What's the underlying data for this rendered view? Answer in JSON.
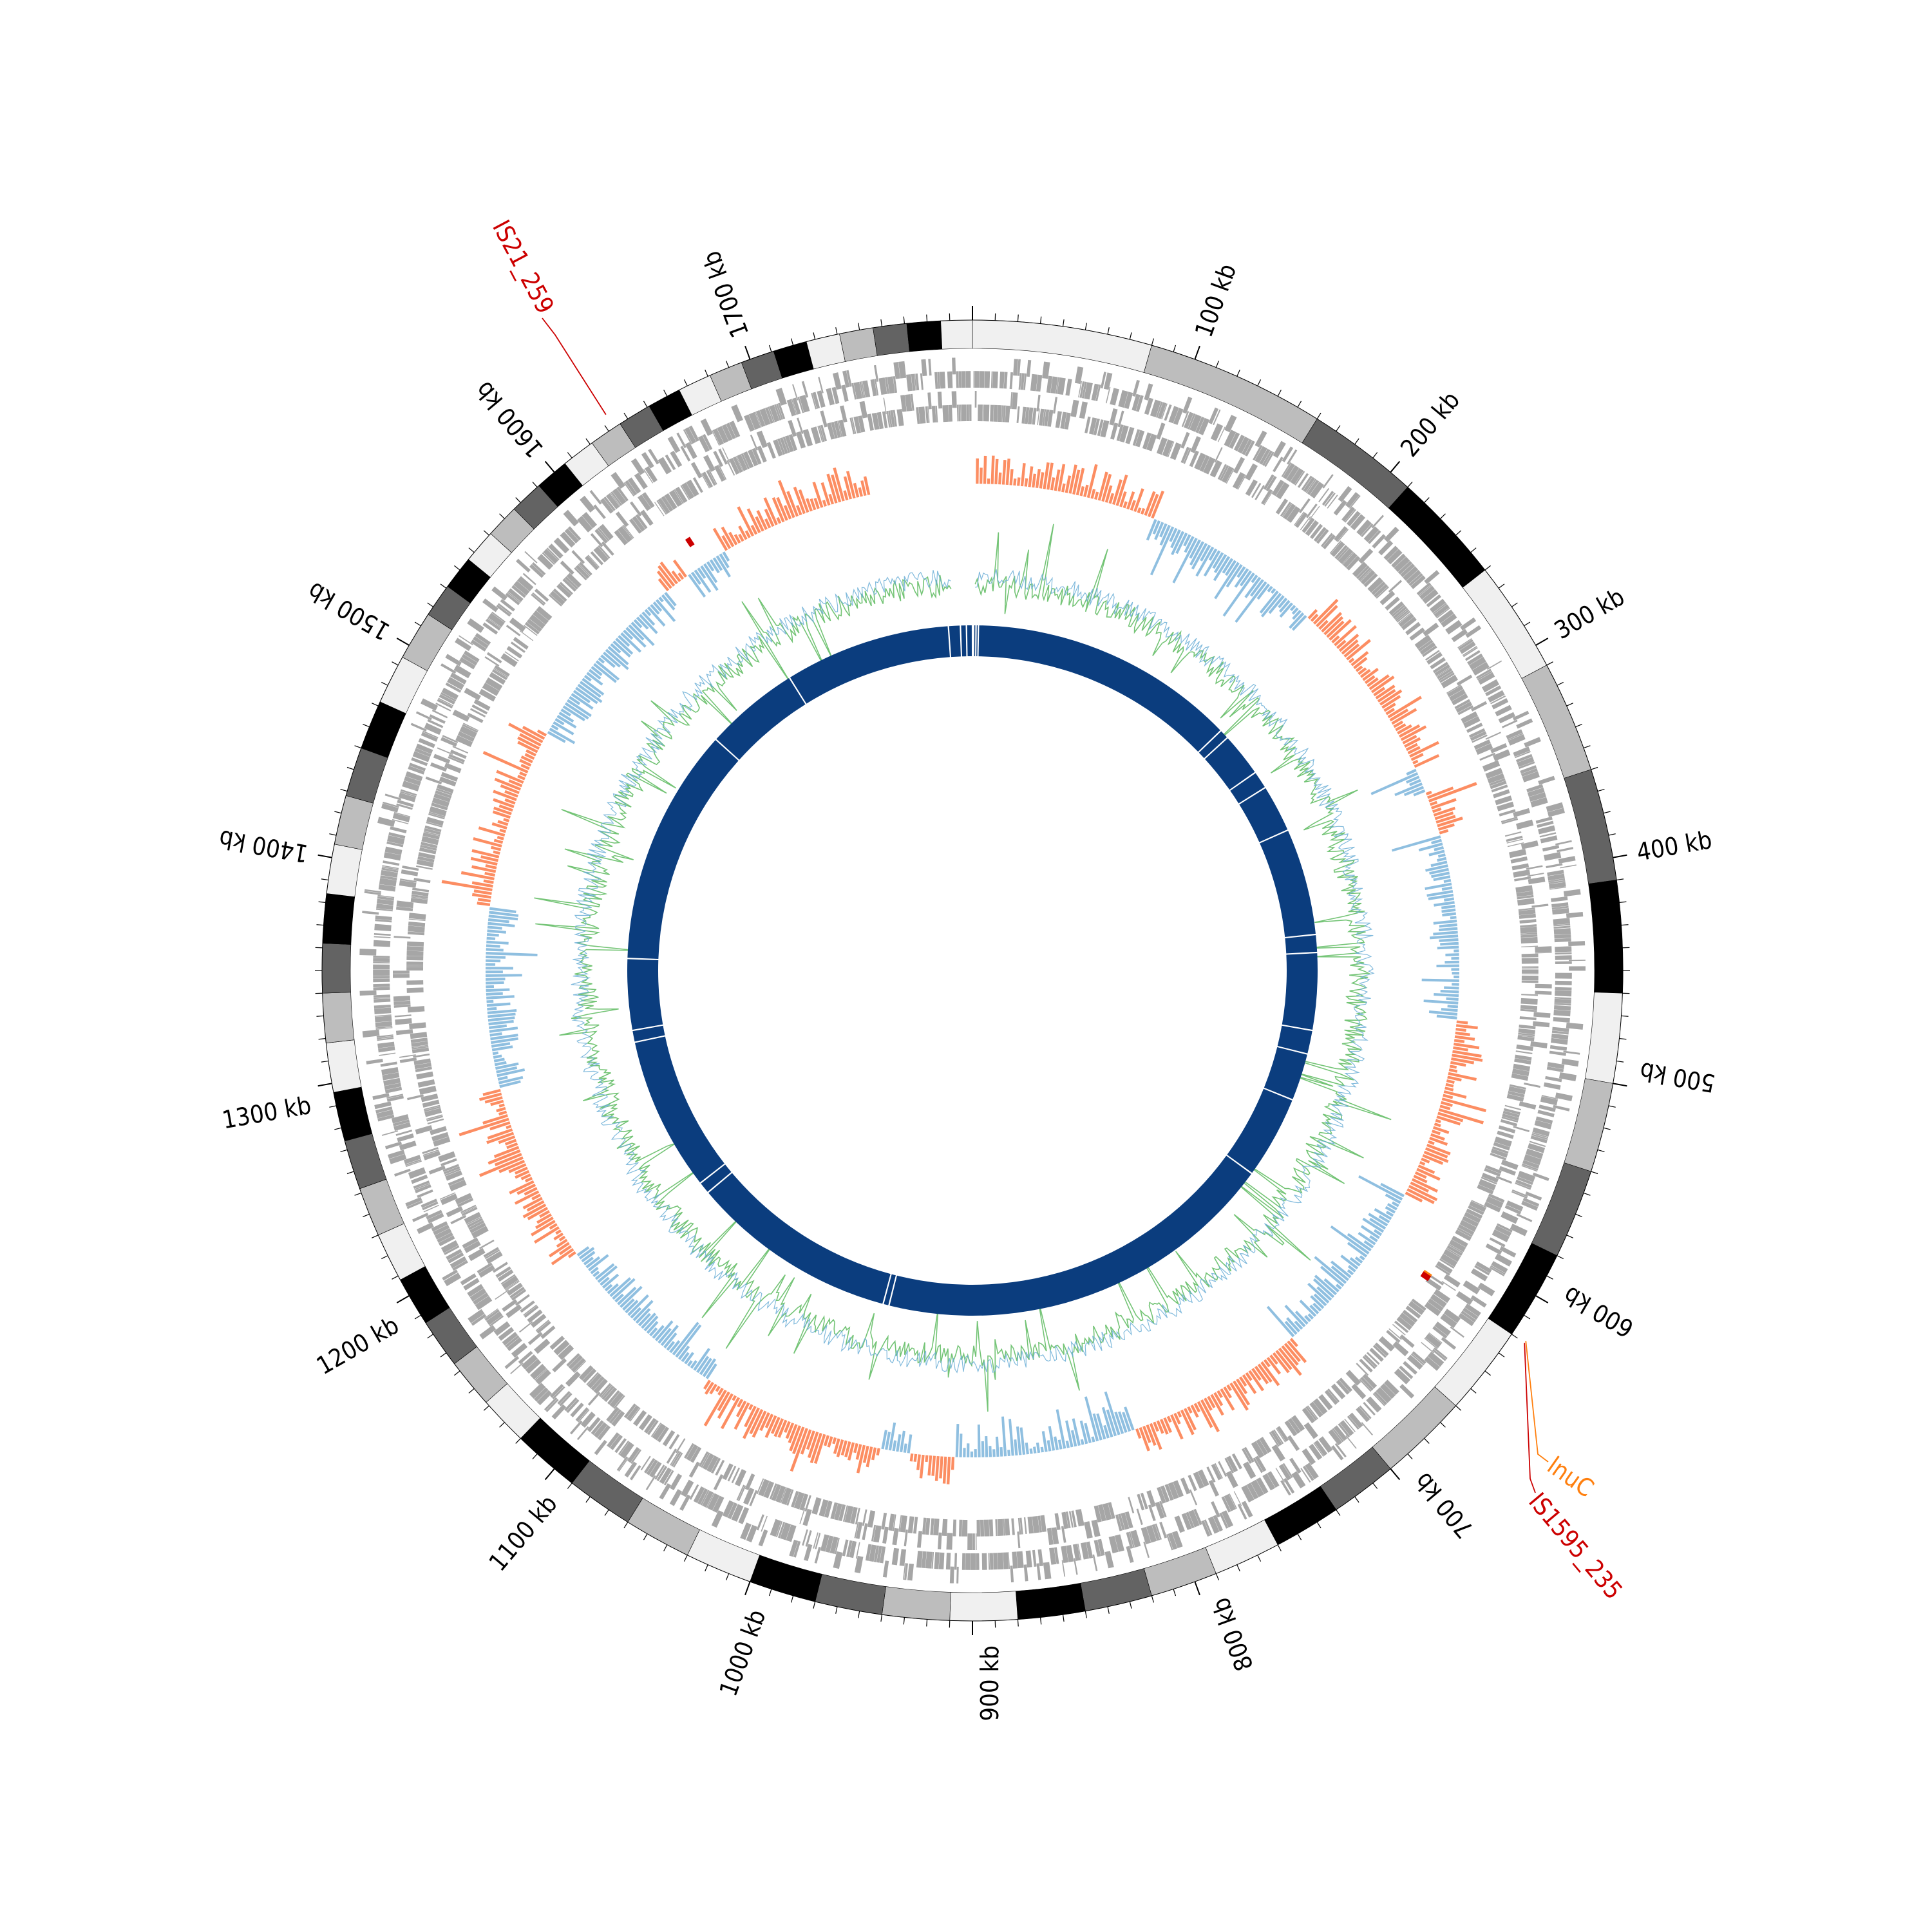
{
  "genome": {
    "length_kb": 1800,
    "start_angle_deg": 0,
    "label_every_kb": 100,
    "tick_labels": [
      "100 kb",
      "200 kb",
      "300 kb",
      "400 kb",
      "500 kb",
      "600 kb",
      "700 kb",
      "800 kb",
      "900 kb",
      "1000 kb",
      "1100 kb",
      "1200 kb",
      "1300 kb",
      "1400 kb",
      "1500 kb",
      "1600 kb",
      "1700 kb"
    ],
    "tick_positions_kb": [
      100,
      200,
      300,
      400,
      500,
      600,
      700,
      800,
      900,
      1000,
      1100,
      1200,
      1300,
      1400,
      1500,
      1600,
      1700
    ]
  },
  "ideogram": {
    "shades": [
      "#f0f0f0",
      "#bdbdbd",
      "#636363",
      "#000000"
    ],
    "band_widths_kb": [
      [
        0,
        150,
        80
      ],
      [
        150,
        420,
        50
      ],
      [
        420,
        700,
        40
      ],
      [
        700,
        1100,
        30
      ],
      [
        1100,
        1500,
        22
      ],
      [
        1500,
        1800,
        15
      ]
    ]
  },
  "tracks": {
    "genes": {
      "color": "#a6a6a6",
      "strands": 2
    },
    "skew": {
      "positive_color": "#fc8d62",
      "negative_color": "#8fbfe0",
      "gap_kb": [
        1740,
        1800
      ]
    },
    "gc": {
      "line_color": "#74c476",
      "alt_color": "#6baed6",
      "gap_kb": [
        1785,
        1800
      ]
    },
    "contigs": {
      "color": "#0b3d7e",
      "breaks_kb": [
        1,
        3,
        5,
        230,
        238,
        275,
        290,
        330,
        420,
        435,
        500,
        520,
        560,
        630,
        970,
        975,
        1150,
        1160,
        1290,
        1300,
        1360,
        1560,
        1640,
        1780,
        1790,
        1795
      ]
    }
  },
  "annotations": [
    {
      "label": "IS21_259",
      "position_kb": 1633,
      "color": "#cc0000"
    },
    {
      "label": "lnuC",
      "position_kb": 619,
      "color": "#ff7f0e"
    },
    {
      "label": "IS1595_235",
      "position_kb": 620,
      "color": "#cc0000"
    }
  ]
}
